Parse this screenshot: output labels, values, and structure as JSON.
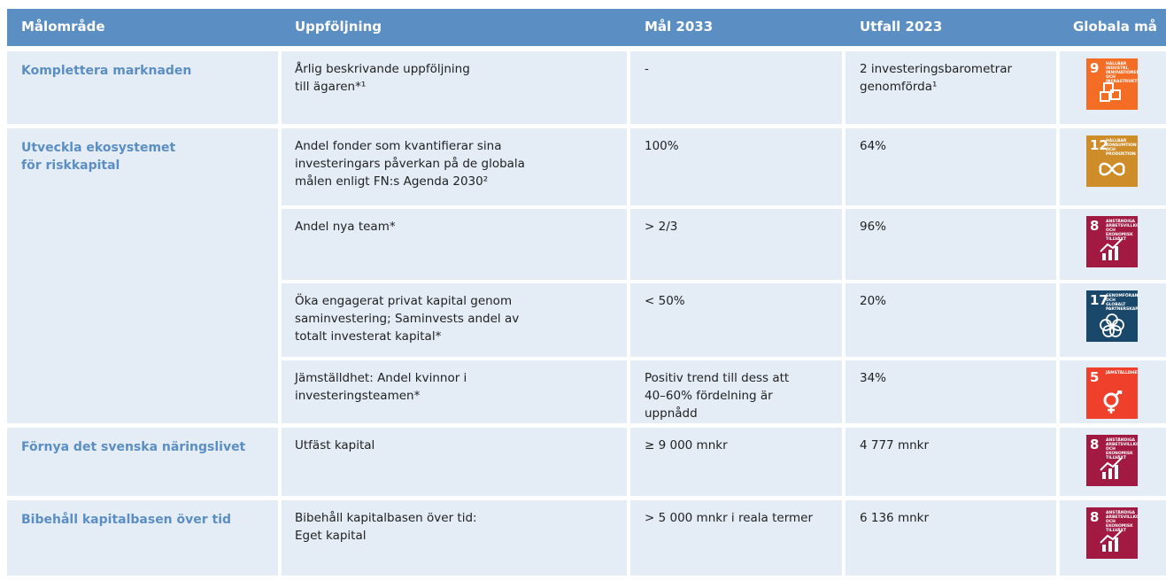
{
  "table": {
    "header": [
      "Målområde",
      "Uppföljning",
      "Mål 2033",
      "Utfall 2023",
      "Globala må"
    ],
    "groups": [
      {
        "goal": [
          "Komplettera marknaden"
        ],
        "items": [
          {
            "followup": [
              "Årlig beskrivande uppföljning",
              "till ägaren*¹"
            ],
            "target": [
              "-"
            ],
            "outcome": [
              "2 investeringsbarometrar",
              "genomförda¹"
            ],
            "sdg": {
              "number": "9",
              "label": "HÅLLBAR INDUSTRI, INNOVATIONER OCH INFRASTRUKTUR",
              "color": "#f36d25"
            }
          }
        ]
      },
      {
        "goal": [
          "Utveckla ekosystemet",
          "för riskkapital"
        ],
        "items": [
          {
            "followup": [
              "Andel fonder som kvantifierar sina",
              "investeringars påverkan på de globala",
              "målen enligt FN:s Agenda 2030²"
            ],
            "target": [
              "100%"
            ],
            "outcome": [
              "64%"
            ],
            "sdg": {
              "number": "12",
              "label": "HÅLLBAR KONSUMTION OCH PRODUKTION",
              "color": "#cf8d2a"
            }
          },
          {
            "followup": [
              "Andel nya team*"
            ],
            "target": [
              "> 2/3"
            ],
            "outcome": [
              "96%"
            ],
            "sdg": {
              "number": "8",
              "label": "ANSTÄNDIGA ARBETSVILLKOR OCH EKONOMISK TILLVÄXT",
              "color": "#a21942"
            }
          },
          {
            "followup": [
              "Öka engagerat privat kapital genom",
              "saminvestering; Saminvests andel av",
              "totalt investerat kapital*"
            ],
            "target": [
              "< 50%"
            ],
            "outcome": [
              "20%"
            ],
            "sdg": {
              "number": "17",
              "label": "GENOMFÖRANDE OCH GLOBALT PARTNERSKAP",
              "color": "#19486a"
            }
          },
          {
            "followup": [
              "Jämställdhet: Andel kvinnor i",
              "investeringsteamen*"
            ],
            "target": [
              "Positiv trend till dess att",
              "40–60% fördelning är",
              "uppnådd"
            ],
            "outcome": [
              "34%"
            ],
            "sdg": {
              "number": "5",
              "label": "JÄMSTÄLLDHET",
              "color": "#ef402b"
            }
          }
        ]
      },
      {
        "goal": [
          "Förnya det svenska näringslivet"
        ],
        "items": [
          {
            "followup": [
              "Utfäst kapital"
            ],
            "target": [
              "≥ 9 000 mnkr"
            ],
            "outcome": [
              "4 777 mnkr"
            ],
            "sdg": {
              "number": "8",
              "label": "ANSTÄNDIGA ARBETSVILLKOR OCH EKONOMISK TILLVÄXT",
              "color": "#a21942"
            }
          }
        ]
      },
      {
        "goal": [
          "Bibehåll kapitalbasen över tid"
        ],
        "items": [
          {
            "followup": [
              "Bibehåll kapitalbasen över tid:",
              "Eget kapital"
            ],
            "target": [
              "> 5 000 mnkr i reala termer"
            ],
            "outcome": [
              "6 136 mnkr"
            ],
            "sdg": {
              "number": "8",
              "label": "ANSTÄNDIGA ARBETSVILLKOR OCH EKONOMISK TILLVÄXT",
              "color": "#a21942"
            }
          }
        ]
      }
    ]
  }
}
